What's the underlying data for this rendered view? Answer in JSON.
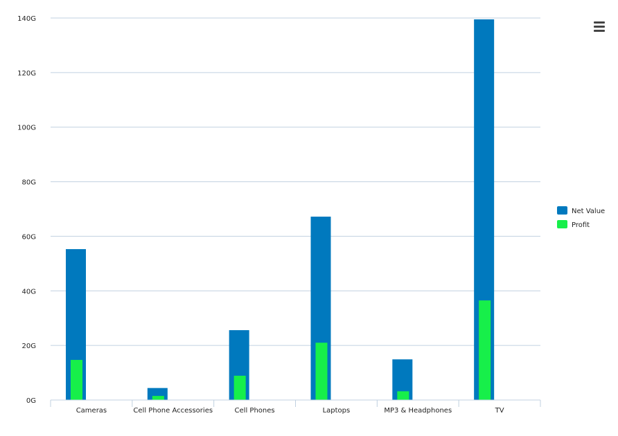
{
  "menu": {
    "icon": "hamburger-menu-icon"
  },
  "chart_data": {
    "type": "bar",
    "categories": [
      "Cameras",
      "Cell Phone Accessories",
      "Cell Phones",
      "Laptops",
      "MP3 & Headphones",
      "TV"
    ],
    "series": [
      {
        "name": "Net Value",
        "color": "#0079be",
        "values": [
          55.3,
          4.4,
          25.6,
          67.2,
          14.9,
          139.5
        ]
      },
      {
        "name": "Profit",
        "color": "#17ef4a",
        "values": [
          14.7,
          1.5,
          8.9,
          21.0,
          3.2,
          36.5
        ]
      }
    ],
    "y_ticks": [
      0,
      20,
      40,
      60,
      80,
      100,
      120,
      140
    ],
    "y_tick_labels": [
      "0G",
      "20G",
      "40G",
      "60G",
      "80G",
      "100G",
      "120G",
      "140G"
    ],
    "ylim": [
      0,
      140
    ],
    "grid": true,
    "legend_position": "right",
    "title": "",
    "xlabel": "",
    "ylabel": ""
  }
}
